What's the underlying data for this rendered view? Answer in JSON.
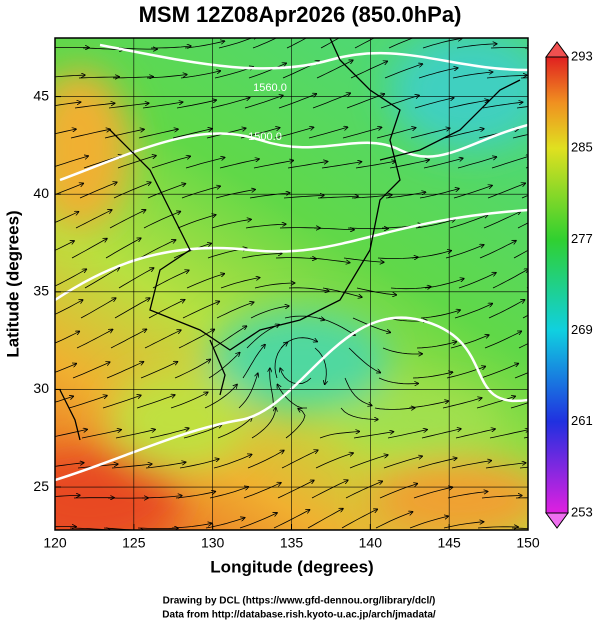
{
  "title": "MSM 12Z08Apr2026 (850.0hPa)",
  "map": {
    "x_label": "Longitude (degrees)",
    "y_label": "Latitude  (degrees)",
    "xlim": [
      120,
      150
    ],
    "ylim": [
      22.8,
      48
    ],
    "xticks": [
      120,
      125,
      130,
      135,
      140,
      145,
      150
    ],
    "yticks": [
      25,
      30,
      35,
      40,
      45
    ],
    "grid": true,
    "contour_labels": [
      "1560.0",
      "1500.0"
    ]
  },
  "colorbar": {
    "lim": [
      253,
      293
    ],
    "ticks": [
      253,
      261,
      269,
      277,
      285,
      293
    ]
  },
  "footer": [
    "Drawing by DCL (https://www.gfd-dennou.org/library/dcl/)",
    "Data from http://database.rish.kyoto-u.ac.jp/arch/jmadata/"
  ]
}
